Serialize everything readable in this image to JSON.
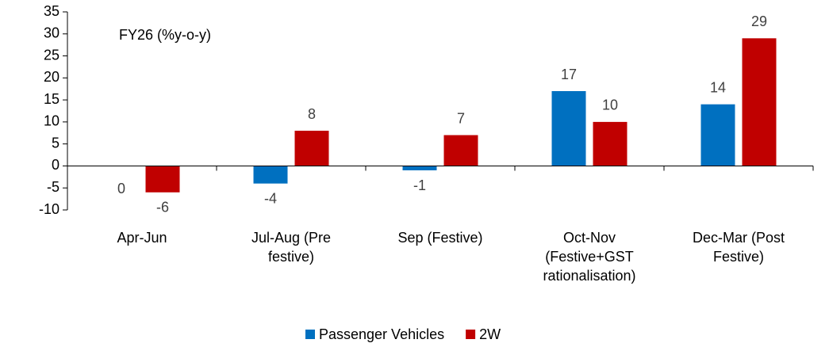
{
  "chart_data": {
    "type": "bar",
    "title": "FY26 (%y-o-y)",
    "categories": [
      "Apr-Jun",
      "Jul-Aug (Pre festive)",
      "Sep (Festive)",
      "Oct-Nov (Festive+GST rationalisation)",
      "Dec-Mar (Post Festive)"
    ],
    "series": [
      {
        "name": "Passenger Vehicles",
        "color": "#0070c0",
        "values": [
          0,
          -4,
          -1,
          17,
          14
        ]
      },
      {
        "name": "2W",
        "color": "#c00000",
        "values": [
          -6,
          8,
          7,
          10,
          29
        ]
      }
    ],
    "ylim": [
      -10,
      35
    ],
    "yticks": [
      -10,
      -5,
      0,
      5,
      10,
      15,
      20,
      25,
      30,
      35
    ],
    "legend": "bottom"
  }
}
